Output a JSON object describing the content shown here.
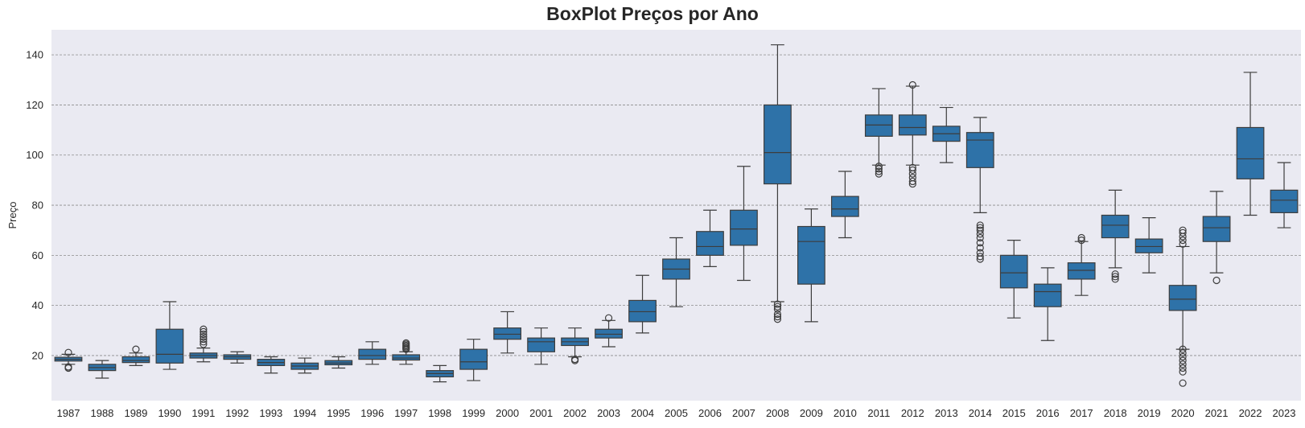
{
  "chart_data": {
    "type": "box",
    "title": "BoxPlot Preços por Ano",
    "xlabel": "",
    "ylabel": "Preço",
    "ylim": [
      2,
      150
    ],
    "yticks": [
      20,
      40,
      60,
      80,
      100,
      120,
      140
    ],
    "grid": "horizontal dashed",
    "colors": {
      "box": "#2e72a8",
      "line": "#3d3d3d",
      "background": "#eaeaf2",
      "grid": "#8c8c8c"
    },
    "categories": [
      "1987",
      "1988",
      "1989",
      "1990",
      "1991",
      "1992",
      "1993",
      "1994",
      "1995",
      "1996",
      "1997",
      "1998",
      "1999",
      "2000",
      "2001",
      "2002",
      "2003",
      "2004",
      "2005",
      "2006",
      "2007",
      "2008",
      "2009",
      "2010",
      "2011",
      "2012",
      "2013",
      "2014",
      "2015",
      "2016",
      "2017",
      "2018",
      "2019",
      "2020",
      "2021",
      "2022",
      "2023"
    ],
    "boxes": [
      {
        "whislo": 16.5,
        "q1": 17.8,
        "med": 18.5,
        "q3": 19.3,
        "whishi": 20.5,
        "fliers": [
          15.0,
          15.5,
          21.2
        ]
      },
      {
        "whislo": 11.0,
        "q1": 14.0,
        "med": 15.2,
        "q3": 16.5,
        "whishi": 18.0,
        "fliers": []
      },
      {
        "whislo": 16.0,
        "q1": 17.2,
        "med": 18.0,
        "q3": 19.5,
        "whishi": 21.0,
        "fliers": [
          22.5
        ]
      },
      {
        "whislo": 14.5,
        "q1": 17.0,
        "med": 20.5,
        "q3": 30.5,
        "whishi": 41.5,
        "fliers": []
      },
      {
        "whislo": 17.5,
        "q1": 19.0,
        "med": 20.0,
        "q3": 21.0,
        "whishi": 23.0,
        "fliers": [
          24.5,
          25.5,
          26.5,
          27.5,
          28.5,
          29.5,
          30.5
        ]
      },
      {
        "whislo": 17.0,
        "q1": 18.5,
        "med": 19.5,
        "q3": 20.3,
        "whishi": 21.5,
        "fliers": []
      },
      {
        "whislo": 13.0,
        "q1": 16.0,
        "med": 17.2,
        "q3": 18.5,
        "whishi": 19.5,
        "fliers": []
      },
      {
        "whislo": 13.0,
        "q1": 14.5,
        "med": 15.8,
        "q3": 17.0,
        "whishi": 19.0,
        "fliers": []
      },
      {
        "whislo": 15.0,
        "q1": 16.3,
        "med": 17.0,
        "q3": 18.0,
        "whishi": 19.5,
        "fliers": []
      },
      {
        "whislo": 16.5,
        "q1": 18.5,
        "med": 20.0,
        "q3": 22.5,
        "whishi": 25.5,
        "fliers": []
      },
      {
        "whislo": 16.5,
        "q1": 18.2,
        "med": 19.0,
        "q3": 20.3,
        "whishi": 21.5,
        "fliers": [
          22.5,
          23.0,
          23.5,
          24.0,
          24.5,
          25.0
        ]
      },
      {
        "whislo": 9.5,
        "q1": 11.5,
        "med": 12.8,
        "q3": 14.0,
        "whishi": 16.0,
        "fliers": []
      },
      {
        "whislo": 10.0,
        "q1": 14.5,
        "med": 17.5,
        "q3": 22.5,
        "whishi": 26.5,
        "fliers": []
      },
      {
        "whislo": 21.0,
        "q1": 26.5,
        "med": 28.5,
        "q3": 31.0,
        "whishi": 37.5,
        "fliers": []
      },
      {
        "whislo": 16.5,
        "q1": 21.5,
        "med": 25.5,
        "q3": 27.0,
        "whishi": 31.0,
        "fliers": []
      },
      {
        "whislo": 19.5,
        "q1": 24.0,
        "med": 25.5,
        "q3": 27.0,
        "whishi": 31.0,
        "fliers": [
          18.0,
          18.5
        ]
      },
      {
        "whislo": 23.5,
        "q1": 27.0,
        "med": 28.5,
        "q3": 30.5,
        "whishi": 34.0,
        "fliers": [
          35.0
        ]
      },
      {
        "whislo": 29.0,
        "q1": 33.5,
        "med": 37.5,
        "q3": 42.0,
        "whishi": 52.0,
        "fliers": []
      },
      {
        "whislo": 39.5,
        "q1": 50.5,
        "med": 54.5,
        "q3": 58.5,
        "whishi": 67.0,
        "fliers": []
      },
      {
        "whislo": 55.5,
        "q1": 60.0,
        "med": 63.5,
        "q3": 69.5,
        "whishi": 78.0,
        "fliers": []
      },
      {
        "whislo": 50.0,
        "q1": 64.0,
        "med": 70.5,
        "q3": 78.0,
        "whishi": 95.5,
        "fliers": []
      },
      {
        "whislo": 41.5,
        "q1": 88.5,
        "med": 101.0,
        "q3": 120.0,
        "whishi": 144.0,
        "fliers": [
          34.5,
          35.5,
          36.5,
          38.5,
          39.5,
          40.5
        ]
      },
      {
        "whislo": 33.5,
        "q1": 48.5,
        "med": 65.5,
        "q3": 71.5,
        "whishi": 78.5,
        "fliers": []
      },
      {
        "whislo": 67.0,
        "q1": 75.5,
        "med": 78.5,
        "q3": 83.5,
        "whishi": 93.5,
        "fliers": []
      },
      {
        "whislo": 96.0,
        "q1": 107.5,
        "med": 112.0,
        "q3": 116.0,
        "whishi": 126.5,
        "fliers": [
          92.5,
          93.5,
          94.5,
          95.5
        ]
      },
      {
        "whislo": 96.0,
        "q1": 108.0,
        "med": 111.0,
        "q3": 116.0,
        "whishi": 127.5,
        "fliers": [
          88.5,
          89.5,
          91.0,
          92.5,
          94.0,
          95.0,
          128.0
        ]
      },
      {
        "whislo": 97.0,
        "q1": 105.5,
        "med": 108.5,
        "q3": 111.5,
        "whishi": 119.0,
        "fliers": []
      },
      {
        "whislo": 77.0,
        "q1": 95.0,
        "med": 106.0,
        "q3": 109.0,
        "whishi": 115.0,
        "fliers": [
          58.5,
          59.5,
          61.0,
          63.0,
          65.0,
          67.0,
          68.5,
          70.0,
          71.0,
          72.0
        ]
      },
      {
        "whislo": 35.0,
        "q1": 47.0,
        "med": 53.0,
        "q3": 60.0,
        "whishi": 66.0,
        "fliers": []
      },
      {
        "whislo": 26.0,
        "q1": 39.5,
        "med": 45.5,
        "q3": 48.5,
        "whishi": 55.0,
        "fliers": []
      },
      {
        "whislo": 44.0,
        "q1": 50.5,
        "med": 54.0,
        "q3": 57.0,
        "whishi": 65.5,
        "fliers": [
          66.0,
          67.0
        ]
      },
      {
        "whislo": 55.0,
        "q1": 67.0,
        "med": 72.0,
        "q3": 76.0,
        "whishi": 86.0,
        "fliers": [
          50.5,
          51.5,
          52.5
        ]
      },
      {
        "whislo": 53.0,
        "q1": 61.0,
        "med": 63.5,
        "q3": 66.5,
        "whishi": 75.0,
        "fliers": []
      },
      {
        "whislo": 22.5,
        "q1": 38.0,
        "med": 42.5,
        "q3": 48.0,
        "whishi": 63.5,
        "fliers": [
          9.0,
          13.5,
          15.0,
          16.5,
          18.0,
          19.5,
          21.0,
          22.5,
          64.5,
          66.0,
          67.5,
          69.0,
          70.0
        ]
      },
      {
        "whislo": 53.0,
        "q1": 65.5,
        "med": 71.0,
        "q3": 75.5,
        "whishi": 85.5,
        "fliers": [
          50.0
        ]
      },
      {
        "whislo": 76.0,
        "q1": 90.5,
        "med": 98.5,
        "q3": 111.0,
        "whishi": 133.0,
        "fliers": []
      },
      {
        "whislo": 71.0,
        "q1": 77.0,
        "med": 82.0,
        "q3": 86.0,
        "whishi": 97.0,
        "fliers": []
      }
    ]
  }
}
